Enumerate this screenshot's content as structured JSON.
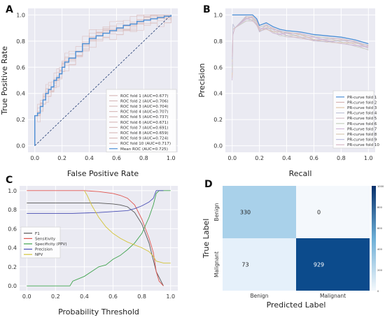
{
  "chart_data": [
    {
      "panel": "A",
      "type": "line",
      "xlabel": "False Positive Rate",
      "ylabel": "True Positive Rate",
      "xlim": [
        -0.05,
        1.05
      ],
      "ylim": [
        -0.05,
        1.05
      ],
      "xticks": [
        "0.0",
        "0.2",
        "0.4",
        "0.6",
        "0.8",
        "1.0"
      ],
      "yticks": [
        "0.0",
        "0.2",
        "0.4",
        "0.6",
        "0.8",
        "1.0"
      ],
      "grid": true,
      "legend_position": "bottom-right",
      "colors": {
        "folds": "#d9bcbc",
        "mean": "#4c8fd6",
        "diagonal": "#1f3b73"
      },
      "legend": [
        "ROC fold 1 (AUC=0.677)",
        "ROC fold 2 (AUC=0.706)",
        "ROC fold 3 (AUC=0.704)",
        "ROC fold 4 (AUC=0.707)",
        "ROC fold 5 (AUC=0.737)",
        "ROC fold 6 (AUC=0.671)",
        "ROC fold 7 (AUC=0.691)",
        "ROC fold 8 (AUC=0.659)",
        "ROC fold 9 (AUC=0.724)",
        "ROC fold 10 (AUC=0.717)",
        "Mean ROC (AUC=0.725)"
      ],
      "series": [
        {
          "name": "Mean ROC (AUC=0.725)",
          "x": [
            0,
            0,
            0.02,
            0.04,
            0.06,
            0.08,
            0.1,
            0.12,
            0.14,
            0.16,
            0.18,
            0.2,
            0.22,
            0.25,
            0.3,
            0.35,
            0.4,
            0.45,
            0.5,
            0.55,
            0.6,
            0.65,
            0.7,
            0.75,
            0.8,
            0.85,
            0.9,
            0.95,
            1.0
          ],
          "y": [
            0,
            0.23,
            0.25,
            0.3,
            0.35,
            0.4,
            0.43,
            0.45,
            0.5,
            0.52,
            0.55,
            0.6,
            0.64,
            0.67,
            0.72,
            0.78,
            0.82,
            0.84,
            0.86,
            0.88,
            0.9,
            0.92,
            0.93,
            0.95,
            0.96,
            0.97,
            0.98,
            0.99,
            1.0
          ]
        },
        {
          "name": "diagonal",
          "x": [
            0,
            1
          ],
          "y": [
            0,
            1
          ]
        }
      ]
    },
    {
      "panel": "B",
      "type": "line",
      "xlabel": "Recall",
      "ylabel": "Precision",
      "xlim": [
        -0.05,
        1.05
      ],
      "ylim": [
        -0.05,
        1.05
      ],
      "xticks": [
        "0.0",
        "0.2",
        "0.4",
        "0.6",
        "0.8",
        "1.0"
      ],
      "yticks": [
        "0.0",
        "0.2",
        "0.4",
        "0.6",
        "0.8",
        "1.0"
      ],
      "grid": true,
      "legend_position": "bottom-right",
      "legend": [
        "PR-curve fold 1",
        "PR-curve fold 2",
        "PR-curve fold 3",
        "PR-curve fold 4",
        "PR-curve fold 5",
        "PR-curve fold 6",
        "PR-curve fold 7",
        "PR-curve fold 8",
        "PR-curve fold 9",
        "PR-curve fold 10"
      ],
      "series": [
        {
          "name": "PR-curve fold 1",
          "x": [
            0,
            0.01,
            0.05,
            0.1,
            0.15,
            0.18,
            0.2,
            0.25,
            0.3,
            0.35,
            0.4,
            0.5,
            0.6,
            0.7,
            0.8,
            0.9,
            1.0
          ],
          "y": [
            1.0,
            1.0,
            1.0,
            1.0,
            1.0,
            0.97,
            0.92,
            0.94,
            0.91,
            0.89,
            0.88,
            0.87,
            0.85,
            0.84,
            0.83,
            0.81,
            0.78
          ]
        }
      ]
    },
    {
      "panel": "C",
      "type": "line",
      "xlabel": "Probability Threshold",
      "xlim": [
        -0.05,
        1.05
      ],
      "ylim": [
        -0.05,
        1.05
      ],
      "xticks": [
        "0.0",
        "0.2",
        "0.4",
        "0.6",
        "0.8",
        "1.0"
      ],
      "yticks": [
        "0.0",
        "0.2",
        "0.4",
        "0.6",
        "0.8",
        "1.0"
      ],
      "grid": true,
      "legend_position": "center-left",
      "series": [
        {
          "name": "F1",
          "color": "#555555",
          "x": [
            0,
            0.3,
            0.5,
            0.6,
            0.65,
            0.7,
            0.75,
            0.8,
            0.85,
            0.9,
            0.95
          ],
          "y": [
            0.87,
            0.87,
            0.87,
            0.86,
            0.85,
            0.83,
            0.77,
            0.65,
            0.45,
            0.15,
            0.0
          ]
        },
        {
          "name": "Sensitivity",
          "color": "#e0554f",
          "x": [
            0,
            0.3,
            0.4,
            0.5,
            0.6,
            0.65,
            0.7,
            0.75,
            0.8,
            0.85,
            0.88,
            0.9,
            0.92,
            0.95
          ],
          "y": [
            1.0,
            1.0,
            1.0,
            0.99,
            0.97,
            0.95,
            0.92,
            0.85,
            0.7,
            0.5,
            0.35,
            0.15,
            0.05,
            0.0
          ]
        },
        {
          "name": "Specificity (PPV)",
          "color": "#3fa34d",
          "x": [
            0,
            0.3,
            0.32,
            0.4,
            0.45,
            0.5,
            0.55,
            0.6,
            0.65,
            0.7,
            0.75,
            0.8,
            0.85,
            0.88,
            0.9,
            0.92,
            0.95,
            1.0
          ],
          "y": [
            0.0,
            0.0,
            0.05,
            0.1,
            0.15,
            0.2,
            0.22,
            0.28,
            0.32,
            0.38,
            0.45,
            0.55,
            0.72,
            0.85,
            0.97,
            1.0,
            1.0,
            1.0
          ]
        },
        {
          "name": "Precision",
          "color": "#4a4fb5",
          "x": [
            0,
            0.3,
            0.5,
            0.6,
            0.7,
            0.75,
            0.8,
            0.85,
            0.88,
            0.9,
            0.92,
            0.95
          ],
          "y": [
            0.76,
            0.76,
            0.77,
            0.78,
            0.79,
            0.81,
            0.84,
            0.88,
            0.92,
            1.0,
            1.0,
            1.0
          ]
        },
        {
          "name": "NPV",
          "color": "#d4c53a",
          "x": [
            0.4,
            0.42,
            0.45,
            0.5,
            0.55,
            0.6,
            0.65,
            0.7,
            0.75,
            0.8,
            0.85,
            0.88,
            0.9,
            0.95,
            1.0
          ],
          "y": [
            1.0,
            0.95,
            0.85,
            0.72,
            0.62,
            0.55,
            0.5,
            0.46,
            0.43,
            0.4,
            0.36,
            0.31,
            0.26,
            0.24,
            0.24
          ]
        }
      ]
    },
    {
      "panel": "D",
      "type": "heatmap",
      "xlabel": "Predicted Label",
      "ylabel": "True Label",
      "x_categories": [
        "Benign",
        "Malignant"
      ],
      "y_categories": [
        "Benign",
        "Malignant"
      ],
      "values": [
        [
          330,
          0
        ],
        [
          73,
          929
        ]
      ],
      "cell_colors": [
        [
          "#a9d1ea",
          "#f4f8fc"
        ],
        [
          "#e5f0fa",
          "#0c4b8c"
        ]
      ],
      "text_colors": [
        [
          "#222222",
          "#222222"
        ],
        [
          "#222222",
          "#ffffff"
        ]
      ],
      "colorbar": {
        "min": 0,
        "max": 1000,
        "ticks": [
          "1000",
          "800",
          "600",
          "400",
          "200",
          "0"
        ],
        "low_color": "#f4f8fc",
        "high_color": "#08306b"
      }
    }
  ],
  "panels": {
    "a": "A",
    "b": "B",
    "c": "C",
    "d": "D"
  }
}
